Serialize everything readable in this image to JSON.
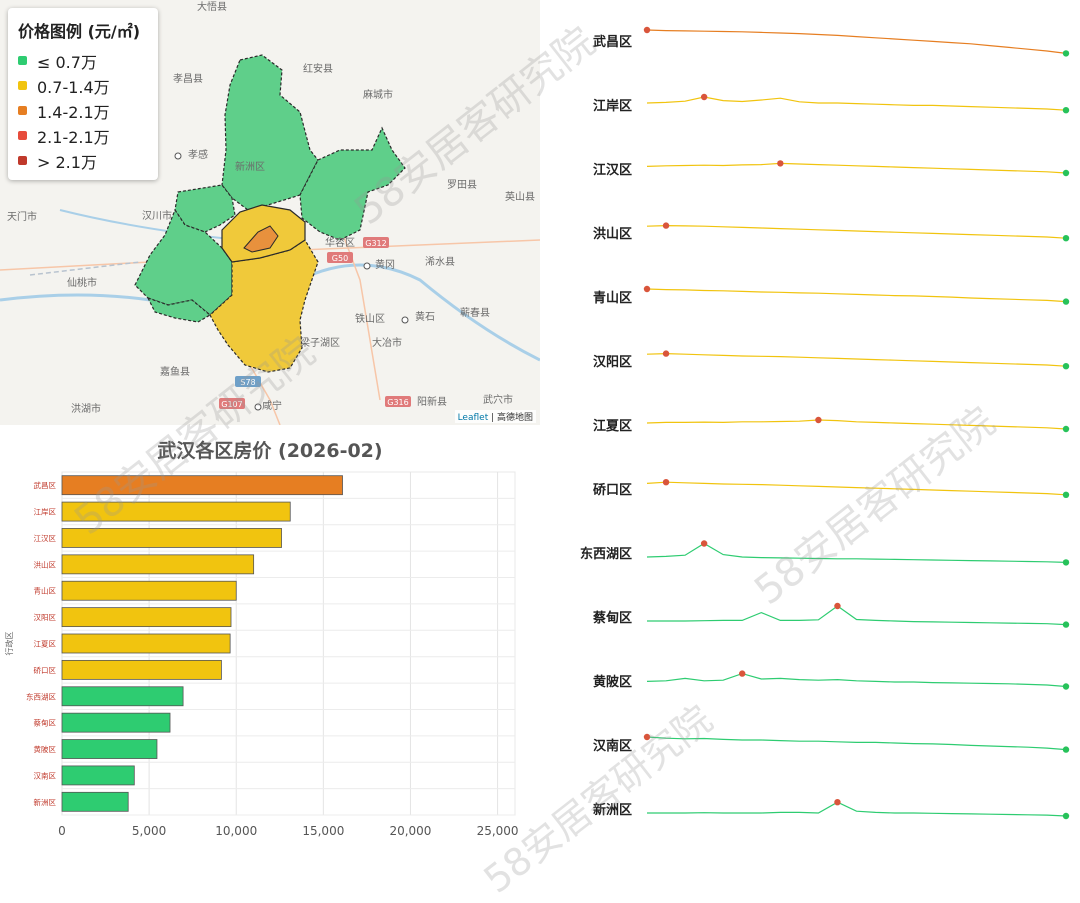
{
  "map": {
    "legend": {
      "title": "价格图例 (元/㎡)",
      "items": [
        {
          "label": "≤ 0.7万",
          "color": "#2ecc71"
        },
        {
          "label": "0.7-1.4万",
          "color": "#f1c40f"
        },
        {
          "label": "1.4-2.1万",
          "color": "#e67e22"
        },
        {
          "label": "2.1-2.1万",
          "color": "#e74c3c"
        },
        {
          "label": "> 2.1万",
          "color": "#c0392b"
        }
      ]
    },
    "places": [
      "大悟县",
      "孝昌县",
      "红安县",
      "麻城市",
      "孝感",
      "新洲区",
      "罗田县",
      "英山县",
      "天门市",
      "汉川市",
      "华容区",
      "黄冈",
      "浠水县",
      "仙桃市",
      "铁山区",
      "黄石",
      "蕲春县",
      "梁子湖区",
      "大冶市",
      "嘉鱼县",
      "咸宁",
      "洪湖市",
      "阳新县",
      "武穴市"
    ],
    "roads": [
      "G312",
      "G50",
      "S78",
      "G107",
      "G316"
    ],
    "attribution": {
      "leaflet": "Leaflet",
      "rest": " | 高德地图"
    }
  },
  "chart_data": {
    "type": "bar",
    "orientation": "horizontal",
    "title": "武汉各区房价 (2026-02)",
    "ylabel": "行政区",
    "xlabel": "",
    "categories": [
      "武昌区",
      "江岸区",
      "江汉区",
      "洪山区",
      "青山区",
      "汉阳区",
      "江夏区",
      "硚口区",
      "东西湖区",
      "蔡甸区",
      "黄陂区",
      "汉南区",
      "新洲区"
    ],
    "values": [
      16100,
      13100,
      12600,
      11000,
      10000,
      9700,
      9650,
      9150,
      6950,
      6200,
      5450,
      4150,
      3800
    ],
    "colors": [
      "#e67e22",
      "#f1c40f",
      "#f1c40f",
      "#f1c40f",
      "#f1c40f",
      "#f1c40f",
      "#f1c40f",
      "#f1c40f",
      "#2ecc71",
      "#2ecc71",
      "#2ecc71",
      "#2ecc71",
      "#2ecc71"
    ],
    "xlim": [
      0,
      26000
    ],
    "xticks": [
      0,
      5000,
      10000,
      15000,
      20000,
      25000
    ],
    "xtick_labels": [
      "0",
      "5,000",
      "10,000",
      "15,000",
      "20,000",
      "25,000"
    ],
    "grid": true
  },
  "sparklines": {
    "districts": [
      {
        "name": "武昌区",
        "color": "#e67e22",
        "trend": [
          1.0,
          0.98,
          0.97,
          0.96,
          0.95,
          0.94,
          0.92,
          0.9,
          0.88,
          0.85,
          0.82,
          0.78,
          0.74,
          0.7,
          0.66,
          0.62,
          0.58,
          0.54,
          0.48,
          0.42,
          0.36,
          0.3,
          0.22
        ]
      },
      {
        "name": "江岸区",
        "color": "#f1c40f",
        "trend": [
          0.7,
          0.72,
          0.76,
          0.9,
          0.78,
          0.75,
          0.8,
          0.86,
          0.74,
          0.7,
          0.7,
          0.68,
          0.66,
          0.64,
          0.62,
          0.62,
          0.6,
          0.58,
          0.56,
          0.54,
          0.52,
          0.5,
          0.46
        ]
      },
      {
        "name": "江汉区",
        "color": "#f1c40f",
        "trend": [
          0.72,
          0.74,
          0.75,
          0.76,
          0.75,
          0.77,
          0.78,
          0.82,
          0.8,
          0.78,
          0.76,
          0.74,
          0.72,
          0.7,
          0.68,
          0.66,
          0.64,
          0.62,
          0.6,
          0.58,
          0.56,
          0.54,
          0.5
        ]
      },
      {
        "name": "洪山区",
        "color": "#f1c40f",
        "trend": [
          0.86,
          0.88,
          0.87,
          0.86,
          0.84,
          0.82,
          0.8,
          0.78,
          0.76,
          0.74,
          0.72,
          0.7,
          0.68,
          0.66,
          0.64,
          0.62,
          0.6,
          0.58,
          0.56,
          0.54,
          0.52,
          0.5,
          0.46
        ]
      },
      {
        "name": "青山区",
        "color": "#f1c40f",
        "trend": [
          0.9,
          0.88,
          0.87,
          0.85,
          0.84,
          0.82,
          0.8,
          0.79,
          0.77,
          0.76,
          0.74,
          0.72,
          0.7,
          0.68,
          0.67,
          0.65,
          0.63,
          0.6,
          0.58,
          0.56,
          0.54,
          0.52,
          0.48
        ]
      },
      {
        "name": "汉阳区",
        "color": "#f1c40f",
        "trend": [
          0.86,
          0.88,
          0.86,
          0.84,
          0.82,
          0.8,
          0.79,
          0.78,
          0.76,
          0.74,
          0.72,
          0.7,
          0.68,
          0.66,
          0.64,
          0.62,
          0.6,
          0.58,
          0.56,
          0.54,
          0.52,
          0.5,
          0.46
        ]
      },
      {
        "name": "江夏区",
        "color": "#f1c40f",
        "trend": [
          0.7,
          0.72,
          0.72,
          0.73,
          0.72,
          0.74,
          0.74,
          0.75,
          0.76,
          0.8,
          0.78,
          0.74,
          0.72,
          0.7,
          0.68,
          0.66,
          0.64,
          0.62,
          0.6,
          0.58,
          0.56,
          0.54,
          0.5
        ]
      },
      {
        "name": "硚口区",
        "color": "#f1c40f",
        "trend": [
          0.82,
          0.86,
          0.84,
          0.82,
          0.8,
          0.79,
          0.78,
          0.76,
          0.74,
          0.72,
          0.7,
          0.68,
          0.66,
          0.64,
          0.62,
          0.6,
          0.58,
          0.56,
          0.54,
          0.52,
          0.5,
          0.48,
          0.44
        ]
      },
      {
        "name": "东西湖区",
        "color": "#2ecc71",
        "trend": [
          0.5,
          0.52,
          0.56,
          0.95,
          0.58,
          0.5,
          0.48,
          0.47,
          0.46,
          0.45,
          0.44,
          0.44,
          0.43,
          0.42,
          0.41,
          0.4,
          0.39,
          0.38,
          0.37,
          0.36,
          0.35,
          0.34,
          0.32
        ]
      },
      {
        "name": "蔡甸区",
        "color": "#2ecc71",
        "trend": [
          0.5,
          0.5,
          0.5,
          0.51,
          0.52,
          0.52,
          0.78,
          0.52,
          0.52,
          0.54,
          1.0,
          0.55,
          0.52,
          0.5,
          0.48,
          0.47,
          0.46,
          0.45,
          0.44,
          0.43,
          0.42,
          0.41,
          0.38
        ]
      },
      {
        "name": "黄陂区",
        "color": "#2ecc71",
        "trend": [
          0.62,
          0.64,
          0.72,
          0.64,
          0.66,
          0.88,
          0.7,
          0.72,
          0.68,
          0.66,
          0.68,
          0.64,
          0.62,
          0.6,
          0.6,
          0.58,
          0.57,
          0.56,
          0.55,
          0.54,
          0.52,
          0.5,
          0.45
        ]
      },
      {
        "name": "汉南区",
        "color": "#2ecc71",
        "trend": [
          0.9,
          0.86,
          0.84,
          0.85,
          0.82,
          0.8,
          0.8,
          0.78,
          0.76,
          0.76,
          0.74,
          0.72,
          0.72,
          0.7,
          0.68,
          0.67,
          0.65,
          0.62,
          0.6,
          0.58,
          0.56,
          0.53,
          0.48
        ]
      },
      {
        "name": "新洲区",
        "color": "#2ecc71",
        "trend": [
          0.5,
          0.5,
          0.5,
          0.51,
          0.5,
          0.5,
          0.5,
          0.52,
          0.52,
          0.5,
          0.86,
          0.56,
          0.52,
          0.5,
          0.5,
          0.49,
          0.48,
          0.47,
          0.46,
          0.45,
          0.44,
          0.43,
          0.4
        ]
      }
    ]
  },
  "watermark": "58安居客研究院"
}
